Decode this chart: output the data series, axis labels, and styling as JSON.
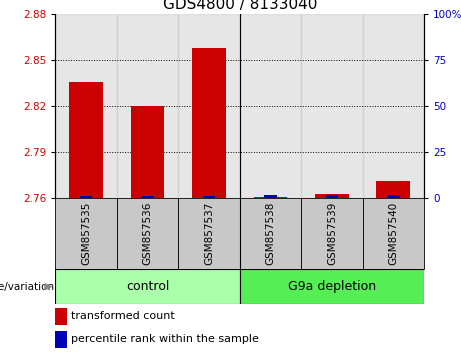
{
  "title": "GDS4800 / 8133040",
  "categories": [
    "GSM857535",
    "GSM857536",
    "GSM857537",
    "GSM857538",
    "GSM857539",
    "GSM857540"
  ],
  "red_values": [
    2.836,
    2.82,
    2.858,
    2.761,
    2.763,
    2.771
  ],
  "blue_pct": [
    1.0,
    1.2,
    1.0,
    2.0,
    1.8,
    1.5
  ],
  "ylim_left": [
    2.76,
    2.88
  ],
  "ylim_right": [
    0,
    100
  ],
  "yticks_left": [
    2.76,
    2.79,
    2.82,
    2.85,
    2.88
  ],
  "yticks_right": [
    0,
    25,
    50,
    75,
    100
  ],
  "ytick_labels_right": [
    "0",
    "25",
    "50",
    "75",
    "100%"
  ],
  "gridlines": [
    2.79,
    2.82,
    2.85
  ],
  "bar_width": 0.55,
  "blue_bar_width": 0.2,
  "red_color": "#CC0000",
  "blue_color": "#0000BB",
  "tick_label_color_left": "#CC0000",
  "tick_label_color_right": "#0000CC",
  "col_bg_color": "#C8C8C8",
  "group_control_color": "#AAFFAA",
  "group_depletion_color": "#55EE55",
  "group_label_text": "genotype/variation",
  "group_control_label": "control",
  "group_depletion_label": "G9a depletion",
  "legend_items": [
    {
      "label": "transformed count",
      "color": "#CC0000"
    },
    {
      "label": "percentile rank within the sample",
      "color": "#0000BB"
    }
  ],
  "title_fontsize": 11,
  "tick_fontsize": 7.5,
  "group_fontsize": 9,
  "legend_fontsize": 8
}
